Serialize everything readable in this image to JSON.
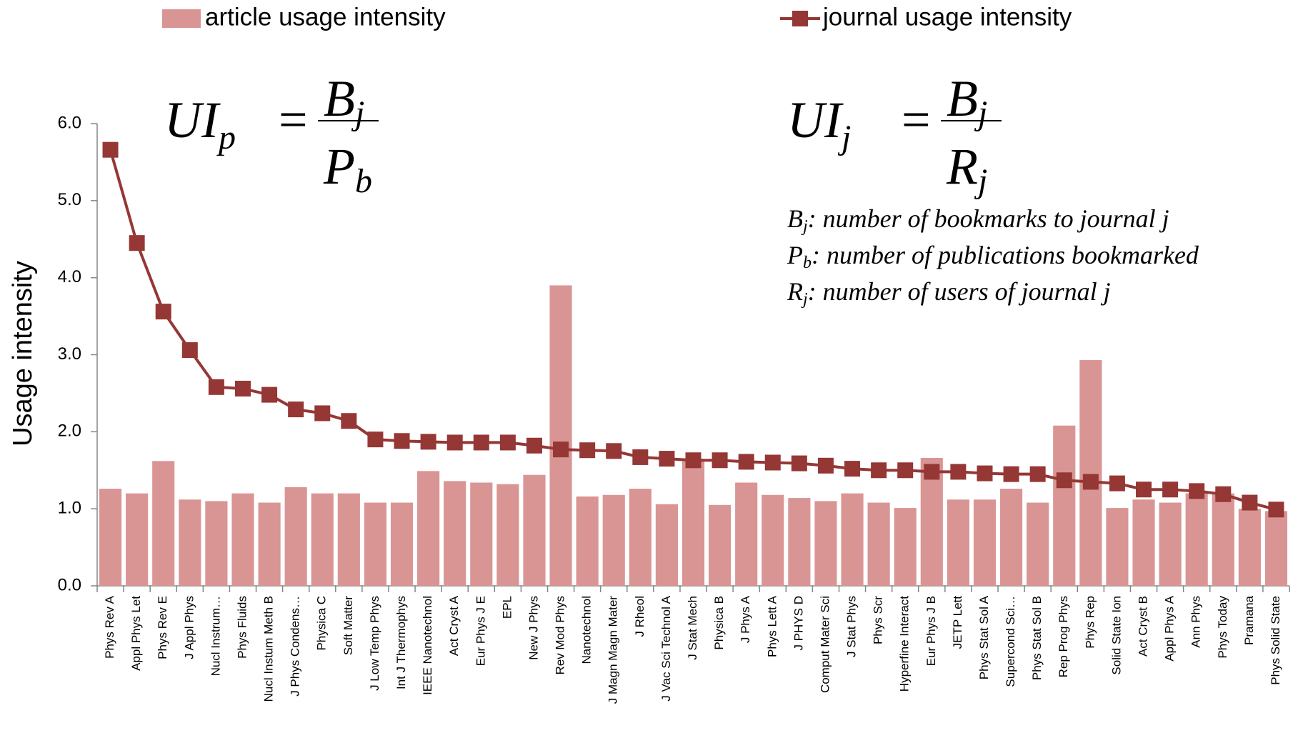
{
  "chart_data": {
    "type": "bar_line",
    "ylabel": "Usage intensity",
    "categories": [
      "Phys Rev A",
      "Appl Phys Let",
      "Phys Rev E",
      "J Appl Phys",
      "Nucl Instrum…",
      "Phys Fluids",
      "Nucl Instum Meth B",
      "J Phys Condens…",
      "Physica C",
      "Soft Matter",
      "J Low Temp Phys",
      "Int J Thermophys",
      "IEEE Nanotechnol",
      "Act Cryst A",
      "Eur Phys J E",
      "EPL",
      "New J Phys",
      "Rev Mod Phys",
      "Nanotechnol",
      "J Magn Magn Mater",
      "J Rheol",
      "J Vac Sci Technol A",
      "J Stat Mech",
      "Physica B",
      "J Phys A",
      "Phys Lett A",
      "J PHYS D",
      "Comput Mater Sci",
      "J Stat Phys",
      "Phys Scr",
      "Hyperfine Interact",
      "Eur Phys J B",
      "JETP Lett",
      "Phys Stat Sol A",
      "Supercond Sci…",
      "Phys Stat Sol B",
      "Rep Prog Phys",
      "Phys Rep",
      "Solid State Ion",
      "Act Cryst B",
      "Appl Phys A",
      "Ann Phys",
      "Phys Today",
      "Pramana",
      "Phys Solid State"
    ],
    "series": [
      {
        "name": "article usage intensity",
        "kind": "bar",
        "color": "#d99594",
        "values": [
          1.26,
          1.2,
          1.62,
          1.12,
          1.1,
          1.2,
          1.08,
          1.28,
          1.2,
          1.2,
          1.08,
          1.08,
          1.49,
          1.36,
          1.34,
          1.32,
          1.44,
          3.9,
          1.16,
          1.18,
          1.26,
          1.06,
          1.65,
          1.05,
          1.34,
          1.18,
          1.14,
          1.1,
          1.2,
          1.08,
          1.01,
          1.66,
          1.12,
          1.12,
          1.26,
          1.08,
          2.08,
          2.93,
          1.01,
          1.12,
          1.08,
          1.2,
          1.2,
          1.0,
          0.97
        ]
      },
      {
        "name": "journal usage intensity",
        "kind": "line",
        "color": "#953735",
        "values": [
          5.66,
          4.45,
          3.56,
          3.06,
          2.58,
          2.56,
          2.48,
          2.29,
          2.24,
          2.14,
          1.9,
          1.88,
          1.87,
          1.86,
          1.86,
          1.86,
          1.82,
          1.77,
          1.76,
          1.75,
          1.67,
          1.65,
          1.63,
          1.63,
          1.61,
          1.6,
          1.59,
          1.56,
          1.52,
          1.5,
          1.5,
          1.48,
          1.48,
          1.46,
          1.45,
          1.45,
          1.37,
          1.35,
          1.33,
          1.25,
          1.25,
          1.23,
          1.19,
          1.08,
          0.99
        ]
      }
    ],
    "ylim": [
      0,
      6
    ],
    "yticks": [
      {
        "value": 0,
        "label": "0.0"
      },
      {
        "value": 1,
        "label": "1.0"
      },
      {
        "value": 2,
        "label": "2.0"
      },
      {
        "value": 3,
        "label": "3.0"
      },
      {
        "value": 4,
        "label": "4.0"
      },
      {
        "value": 5,
        "label": "5.0"
      },
      {
        "value": 6,
        "label": "6.0"
      }
    ],
    "formulas": [
      {
        "lhs": "UI",
        "lhs_sub": "p",
        "eq": "=",
        "num": "B",
        "num_sub": "j",
        "den": "P",
        "den_sub": "b"
      },
      {
        "lhs": "UI",
        "lhs_sub": "j",
        "eq": "=",
        "num": "B",
        "num_sub": "j",
        "den": "R",
        "den_sub": "j"
      }
    ],
    "definitions": [
      {
        "symbol": "B",
        "sub": "j",
        "text": ": number of bookmarks to journal j"
      },
      {
        "symbol": "P",
        "sub": "b",
        "text": ": number of publications bookmarked"
      },
      {
        "symbol": "R",
        "sub": "j",
        "text": ": number of users of journal j"
      }
    ]
  }
}
